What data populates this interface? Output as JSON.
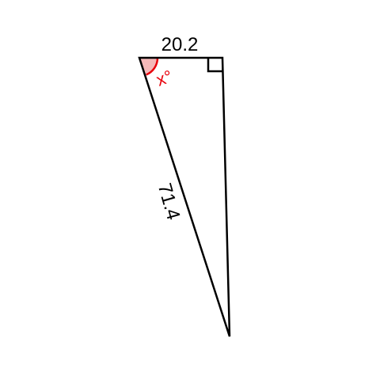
{
  "diagram": {
    "top_side_label": "20.2",
    "hypotenuse_label": "71.4",
    "angle_label": "x°",
    "colors": {
      "edge": "#000000",
      "angle_mark": "#e8000b",
      "angle_fill": "#f4b8b8",
      "text": "#000000"
    },
    "right_angle_marker": true
  }
}
